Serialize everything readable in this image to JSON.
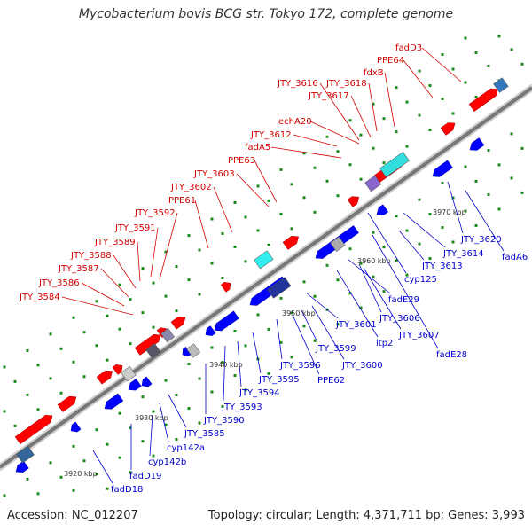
{
  "title": "Mycobacterium bovis BCG str. Tokyo 172, complete genome",
  "footer": {
    "accession": "Accession: NC_012207",
    "info": "Topology: circular; Length: 4,371,711 bp; Genes: 3,993"
  },
  "colors": {
    "forward_gene": "#ff0000",
    "reverse_gene": "#0000ff",
    "backbone": "#888888",
    "tick": "#1a8a1a",
    "label_top": "#d40000",
    "label_bottom": "#0000cc"
  },
  "kbp_labels": [
    "3920 kbp",
    "3930 kbp",
    "3940 kbp",
    "3950 kbp",
    "3960 kbp",
    "3970 kbp"
  ],
  "labels_top": [
    "JTY_3584",
    "JTY_3586",
    "JTY_3587",
    "JTY_3588",
    "JTY_3589",
    "JTY_3591",
    "JTY_3592",
    "PPE61",
    "JTY_3602",
    "JTY_3603",
    "PPE63",
    "fadA5",
    "JTY_3612",
    "echA20",
    "JTY_3616",
    "JTY_3617",
    "JTY_3618",
    "fdxB",
    "PPE64",
    "fadD3"
  ],
  "labels_bottom": [
    "fadD18",
    "fadD19",
    "cyp142b",
    "cyp142a",
    "JTY_3585",
    "JTY_3590",
    "JTY_3593",
    "JTY_3594",
    "JTY_3595",
    "JTY_3596",
    "PPE62",
    "JTY_3599",
    "JTY_3600",
    "JTY_3601",
    "ltp2",
    "JTY_3607",
    "JTY_3606",
    "fadE29",
    "fadE28",
    "cyp125",
    "JTY_3613",
    "JTY_3614",
    "JTY_3620",
    "fadA6"
  ]
}
